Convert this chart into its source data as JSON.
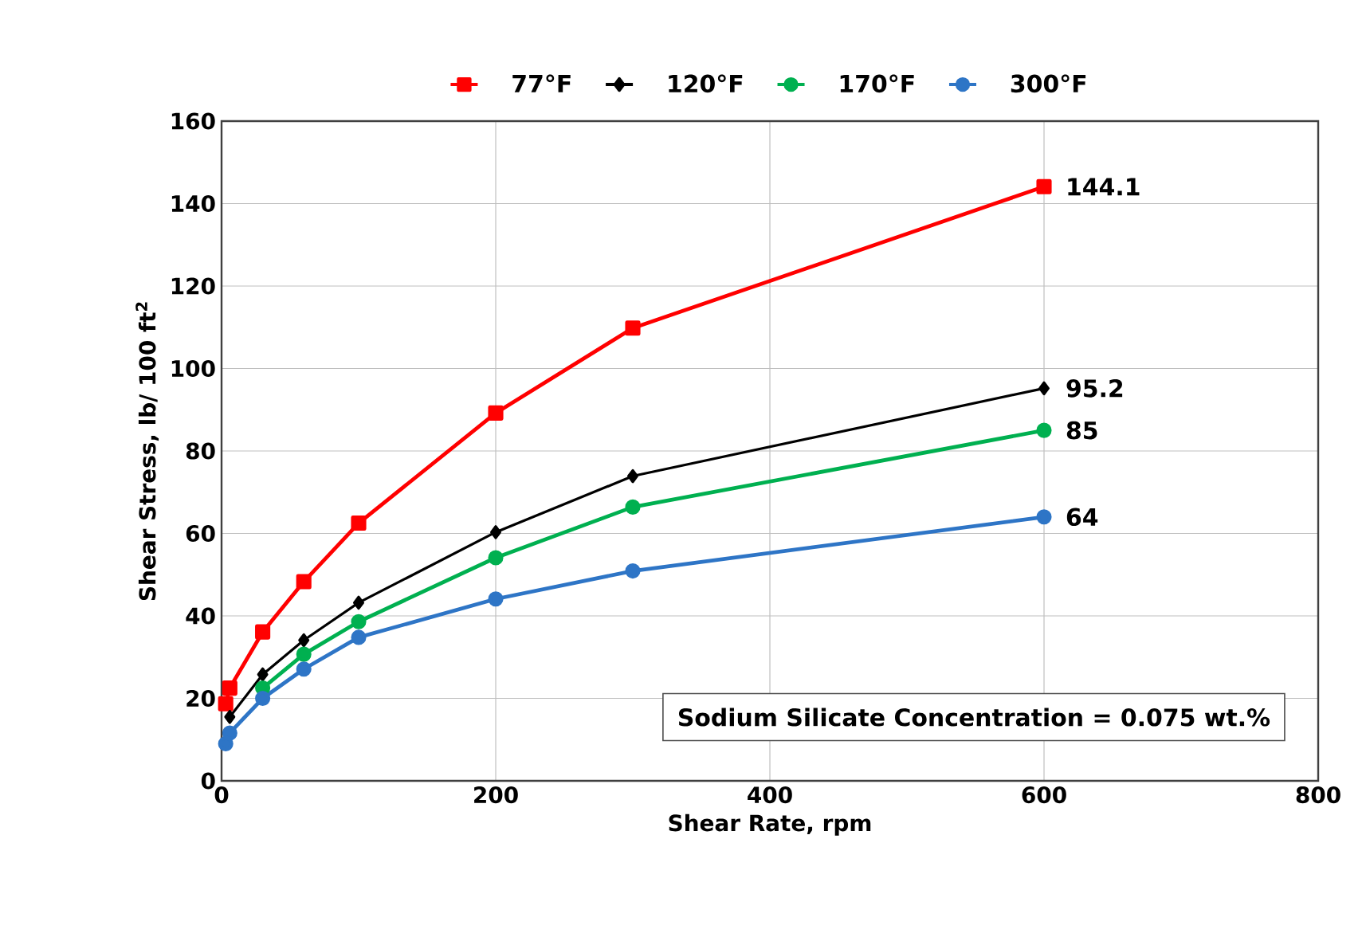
{
  "chart_data": {
    "type": "line",
    "xlabel": "Shear Rate, rpm",
    "ylabel": "Shear Stress, lb/ 100 ft$^{2}$",
    "x": [
      3,
      6,
      30,
      60,
      100,
      200,
      300,
      600
    ],
    "series": [
      {
        "name": "77°F",
        "color": "#ff0000",
        "marker": "square",
        "values": [
          18.7,
          22.5,
          36.1,
          48.3,
          62.5,
          89.2,
          109.8,
          144.1
        ],
        "value_labels": [
          null,
          null,
          null,
          null,
          null,
          null,
          null,
          "144.1"
        ]
      },
      {
        "name": "120°F",
        "color": "#000000",
        "marker": "diamond",
        "values": [
          null,
          15.5,
          25.8,
          34.1,
          43.2,
          60.3,
          73.9,
          95.2
        ],
        "value_labels": [
          null,
          null,
          null,
          null,
          null,
          null,
          null,
          "95.2"
        ]
      },
      {
        "name": "170°F",
        "color": "#00b050",
        "marker": "circle",
        "values": [
          null,
          null,
          22.5,
          30.7,
          38.6,
          54.1,
          66.4,
          85
        ],
        "value_labels": [
          null,
          null,
          null,
          null,
          null,
          null,
          null,
          "85"
        ]
      },
      {
        "name": "300°F",
        "color": "#2e75c6",
        "marker": "circle",
        "values": [
          9,
          11.6,
          20,
          27.1,
          34.8,
          44.1,
          50.9,
          64
        ],
        "value_labels": [
          null,
          null,
          null,
          null,
          null,
          null,
          null,
          "64"
        ]
      }
    ],
    "xlim": [
      0,
      800
    ],
    "xticks": [
      0,
      200,
      400,
      600,
      800
    ],
    "ylim": [
      0,
      160
    ],
    "yticks": [
      0,
      20,
      40,
      60,
      80,
      100,
      120,
      140,
      160
    ],
    "grid": true,
    "legend": "top",
    "annotations": [
      "Sodium Silicate Concentration = 0.075 wt.%"
    ]
  }
}
